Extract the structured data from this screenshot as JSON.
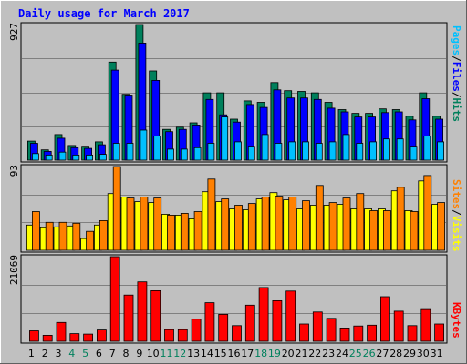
{
  "title": "Daily usage for March 2017",
  "colors": {
    "background": "#c0c0c0",
    "title": "#0000ff",
    "hits": "#00805c",
    "files": "#0000ff",
    "pages": "#00c0ff",
    "visits": "#ffff00",
    "sites": "#ff8000",
    "kbytes": "#ff0000",
    "weekend_label": "#00805c",
    "weekday_label": "#000000"
  },
  "chart_data": [
    {
      "type": "bar",
      "title": "Daily usage for March 2017",
      "y_max_label": "927",
      "ylim": [
        0,
        927
      ],
      "grid": true,
      "right_legend": [
        {
          "text": "Pages",
          "color": "#00c0ff"
        },
        {
          "text": "/",
          "color": "#000000"
        },
        {
          "text": "Files",
          "color": "#0000ff"
        },
        {
          "text": "/",
          "color": "#000000"
        },
        {
          "text": "Hits",
          "color": "#00805c"
        }
      ],
      "categories": [
        "1",
        "2",
        "3",
        "4",
        "5",
        "6",
        "7",
        "8",
        "9",
        "10",
        "11",
        "12",
        "13",
        "14",
        "15",
        "16",
        "17",
        "18",
        "19",
        "20",
        "21",
        "22",
        "23",
        "24",
        "25",
        "26",
        "27",
        "28",
        "29",
        "30",
        "31"
      ],
      "series": [
        {
          "name": "Hits",
          "color": "#00805c",
          "values": [
            130,
            70,
            175,
            100,
            95,
            125,
            670,
            450,
            927,
            610,
            210,
            225,
            255,
            460,
            460,
            280,
            405,
            395,
            530,
            475,
            470,
            460,
            395,
            345,
            320,
            320,
            350,
            345,
            300,
            460,
            300
          ]
        },
        {
          "name": "Files",
          "color": "#0000ff",
          "values": [
            115,
            60,
            150,
            85,
            80,
            105,
            615,
            445,
            800,
            545,
            195,
            210,
            240,
            415,
            310,
            260,
            380,
            360,
            480,
            425,
            425,
            415,
            355,
            330,
            295,
            295,
            325,
            330,
            275,
            420,
            280
          ]
        },
        {
          "name": "Pages",
          "color": "#00c0ff",
          "values": [
            45,
            35,
            55,
            35,
            35,
            40,
            115,
            115,
            205,
            165,
            75,
            75,
            85,
            115,
            295,
            125,
            95,
            175,
            115,
            125,
            125,
            115,
            125,
            175,
            115,
            125,
            145,
            145,
            95,
            165,
            125
          ]
        }
      ]
    },
    {
      "type": "bar",
      "y_max_label": "93",
      "ylim": [
        0,
        93
      ],
      "grid": true,
      "right_legend": [
        {
          "text": "Sites",
          "color": "#ff8000"
        },
        {
          "text": "/",
          "color": "#000000"
        },
        {
          "text": "Visits",
          "color": "#ffff00"
        }
      ],
      "categories": [
        "1",
        "2",
        "3",
        "4",
        "5",
        "6",
        "7",
        "8",
        "9",
        "10",
        "11",
        "12",
        "13",
        "14",
        "15",
        "16",
        "17",
        "18",
        "19",
        "20",
        "21",
        "22",
        "23",
        "24",
        "25",
        "26",
        "27",
        "28",
        "29",
        "30",
        "31"
      ],
      "series": [
        {
          "name": "Visits",
          "color": "#ffff00",
          "values": [
            28,
            25,
            26,
            27,
            13,
            28,
            63,
            59,
            54,
            53,
            40,
            39,
            35,
            65,
            54,
            46,
            45,
            57,
            64,
            56,
            46,
            50,
            50,
            51,
            46,
            46,
            46,
            66,
            44,
            77,
            51
          ]
        },
        {
          "name": "Sites",
          "color": "#ff8000",
          "values": [
            43,
            31,
            31,
            30,
            21,
            33,
            93,
            58,
            59,
            58,
            39,
            41,
            43,
            79,
            57,
            50,
            52,
            59,
            60,
            59,
            55,
            72,
            53,
            58,
            63,
            44,
            44,
            70,
            43,
            83,
            53
          ]
        }
      ]
    },
    {
      "type": "bar",
      "y_max_label": "21069",
      "ylim": [
        0,
        21069
      ],
      "grid": true,
      "right_legend": [
        {
          "text": "KBytes",
          "color": "#ff0000"
        }
      ],
      "categories": [
        "1",
        "2",
        "3",
        "4",
        "5",
        "6",
        "7",
        "8",
        "9",
        "10",
        "11",
        "12",
        "13",
        "14",
        "15",
        "16",
        "17",
        "18",
        "19",
        "20",
        "21",
        "22",
        "23",
        "24",
        "25",
        "26",
        "27",
        "28",
        "29",
        "30",
        "31"
      ],
      "series": [
        {
          "name": "KBytes",
          "color": "#ff0000",
          "values": [
            2600,
            1500,
            4700,
            1900,
            1800,
            2800,
            21069,
            11500,
            14800,
            12600,
            2900,
            2900,
            5500,
            9600,
            6700,
            3900,
            9000,
            13400,
            10100,
            12500,
            4300,
            7300,
            5700,
            3300,
            3800,
            4000,
            11100,
            7500,
            3900,
            7900,
            4300
          ]
        }
      ]
    }
  ],
  "x_axis": {
    "labels": [
      "1",
      "2",
      "3",
      "4",
      "5",
      "6",
      "7",
      "8",
      "9",
      "10",
      "11",
      "12",
      "13",
      "14",
      "15",
      "16",
      "17",
      "18",
      "19",
      "20",
      "21",
      "22",
      "23",
      "24",
      "25",
      "26",
      "27",
      "28",
      "29",
      "30",
      "31"
    ],
    "weekend_days": [
      "4",
      "5",
      "11",
      "12",
      "18",
      "19",
      "25",
      "26"
    ]
  }
}
